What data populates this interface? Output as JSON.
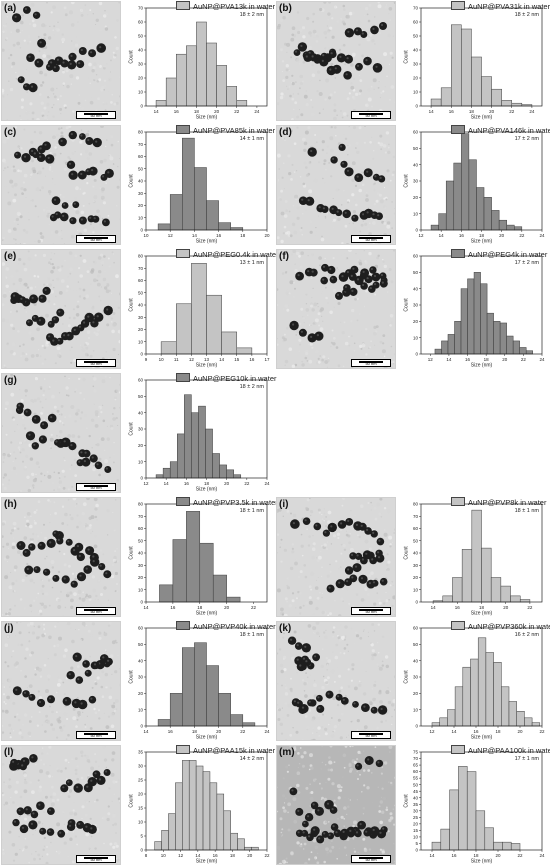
{
  "scalebar_label": "50 nm",
  "colors": {
    "dark_bars": "#8a8a8a",
    "light_bars": "#c4c4c4",
    "edge": "#3a3a3a"
  },
  "chart_data": [
    {
      "id": "a",
      "type": "bar",
      "label": "(a)",
      "legend": "AuNP@PVA13k in water",
      "size_text": "18 ± 2 nm",
      "xlabel": "Size (nm)",
      "ylabel": "Count",
      "xlim": [
        13,
        25
      ],
      "ylim": [
        0,
        70
      ],
      "xticks": [
        14,
        16,
        18,
        20,
        22,
        24
      ],
      "yticks": [
        0,
        10,
        20,
        30,
        40,
        50,
        60,
        70
      ],
      "bin_start": 14,
      "bin_width": 1,
      "values": [
        4,
        20,
        37,
        43,
        60,
        45,
        29,
        14,
        4
      ],
      "shade": "light"
    },
    {
      "id": "b",
      "type": "bar",
      "label": "(b)",
      "legend": "AuNP@PVA31k in water",
      "size_text": "18 ± 2 nm",
      "xlabel": "Size (nm)",
      "ylabel": "Count",
      "xlim": [
        13,
        25
      ],
      "ylim": [
        0,
        70
      ],
      "xticks": [
        14,
        16,
        18,
        20,
        22,
        24
      ],
      "yticks": [
        0,
        10,
        20,
        30,
        40,
        50,
        60,
        70
      ],
      "bin_start": 14,
      "bin_width": 1,
      "values": [
        5,
        13,
        58,
        55,
        35,
        21,
        12,
        4,
        2,
        1
      ],
      "shade": "light"
    },
    {
      "id": "c",
      "type": "bar",
      "label": "(c)",
      "legend": "AuNP@PVA85k in water",
      "size_text": "14 ± 1 nm",
      "xlabel": "Size (nm)",
      "ylabel": "Count",
      "xlim": [
        10,
        20
      ],
      "ylim": [
        0,
        80
      ],
      "xticks": [
        10,
        12,
        14,
        16,
        18,
        20
      ],
      "yticks": [
        0,
        10,
        20,
        30,
        40,
        50,
        60,
        70,
        80
      ],
      "bin_start": 11,
      "bin_width": 1,
      "values": [
        5,
        29,
        75,
        51,
        24,
        6,
        2
      ],
      "shade": "dark"
    },
    {
      "id": "d",
      "type": "bar",
      "label": "(d)",
      "legend": "AuNP@PVA146k in water",
      "size_text": "17 ± 2 nm",
      "xlabel": "Size (nm)",
      "ylabel": "Count",
      "xlim": [
        12,
        24
      ],
      "ylim": [
        0,
        60
      ],
      "xticks": [
        12,
        14,
        16,
        18,
        20,
        22,
        24
      ],
      "yticks": [
        0,
        10,
        20,
        30,
        40,
        50,
        60
      ],
      "bin_start": 13,
      "bin_width": 0.75,
      "values": [
        3,
        10,
        30,
        41,
        59,
        43,
        26,
        20,
        12,
        6,
        3,
        2
      ],
      "shade": "dark"
    },
    {
      "id": "e",
      "type": "bar",
      "label": "(e)",
      "legend": "AuNP@PEG0.4k in water",
      "size_text": "13 ± 1 nm",
      "xlabel": "Size (nm)",
      "ylabel": "Count",
      "xlim": [
        9,
        17
      ],
      "ylim": [
        0,
        80
      ],
      "xticks": [
        9,
        10,
        11,
        12,
        13,
        14,
        15,
        16,
        17
      ],
      "yticks": [
        0,
        10,
        20,
        30,
        40,
        50,
        60,
        70,
        80
      ],
      "bin_start": 10,
      "bin_width": 1,
      "values": [
        10,
        41,
        74,
        48,
        18,
        5
      ],
      "shade": "light"
    },
    {
      "id": "f",
      "type": "bar",
      "label": "(f)",
      "legend": "AuNP@PEG4k in water",
      "size_text": "17 ± 2 nm",
      "xlabel": "Size (nm)",
      "ylabel": "Count",
      "xlim": [
        11,
        24
      ],
      "ylim": [
        0,
        60
      ],
      "xticks": [
        12,
        14,
        16,
        18,
        20,
        22,
        24
      ],
      "yticks": [
        0,
        10,
        20,
        30,
        40,
        50,
        60
      ],
      "bin_start": 12.5,
      "bin_width": 0.7,
      "values": [
        3,
        8,
        12,
        20,
        40,
        46,
        50,
        43,
        25,
        20,
        19,
        11,
        8,
        4,
        2
      ],
      "shade": "dark"
    },
    {
      "id": "g",
      "type": "bar",
      "label": "(g)",
      "legend": "AuNP@PEG10k in water",
      "size_text": "18 ± 2 nm",
      "xlabel": "Size (nm)",
      "ylabel": "Count",
      "xlim": [
        12,
        24
      ],
      "ylim": [
        0,
        60
      ],
      "xticks": [
        12,
        14,
        16,
        18,
        20,
        22,
        24
      ],
      "yticks": [
        0,
        10,
        20,
        30,
        40,
        50,
        60
      ],
      "bin_start": 13,
      "bin_width": 0.7,
      "values": [
        2,
        6,
        10,
        27,
        51,
        40,
        44,
        30,
        15,
        8,
        5,
        2
      ],
      "shade": "dark"
    },
    {
      "id": "h",
      "type": "bar",
      "label": "(h)",
      "legend": "AuNP@PVP3.5k in water",
      "size_text": "18 ± 1 nm",
      "xlabel": "Size (nm)",
      "ylabel": "Count",
      "xlim": [
        14,
        23
      ],
      "ylim": [
        0,
        80
      ],
      "xticks": [
        14,
        16,
        18,
        20,
        22
      ],
      "yticks": [
        0,
        10,
        20,
        30,
        40,
        50,
        60,
        70,
        80
      ],
      "bin_start": 15,
      "bin_width": 1,
      "values": [
        14,
        51,
        74,
        48,
        22,
        4
      ],
      "shade": "dark"
    },
    {
      "id": "i",
      "type": "bar",
      "label": "(i)",
      "legend": "AuNP@PVP8k in water",
      "size_text": "18 ± 1 nm",
      "xlabel": "Size (nm)",
      "ylabel": "Count",
      "xlim": [
        13,
        23
      ],
      "ylim": [
        0,
        80
      ],
      "xticks": [
        14,
        16,
        18,
        20,
        22
      ],
      "yticks": [
        0,
        10,
        20,
        30,
        40,
        50,
        60,
        70,
        80
      ],
      "bin_start": 14,
      "bin_width": 0.8,
      "values": [
        1,
        5,
        20,
        43,
        75,
        44,
        20,
        13,
        5,
        2
      ],
      "shade": "light"
    },
    {
      "id": "j",
      "type": "bar",
      "label": "(j)",
      "legend": "AuNP@PVP40k in water",
      "size_text": "18 ± 1 nm",
      "xlabel": "Size (nm)",
      "ylabel": "Count",
      "xlim": [
        14,
        24
      ],
      "ylim": [
        0,
        60
      ],
      "xticks": [
        14,
        16,
        18,
        20,
        22,
        24
      ],
      "yticks": [
        0,
        10,
        20,
        30,
        40,
        50,
        60
      ],
      "bin_start": 15,
      "bin_width": 1,
      "values": [
        4,
        20,
        48,
        51,
        37,
        20,
        7,
        2
      ],
      "shade": "dark"
    },
    {
      "id": "k",
      "type": "bar",
      "label": "(k)",
      "legend": "AuNP@PVP360k in water",
      "size_text": "16 ± 2 nm",
      "xlabel": "Size (nm)",
      "ylabel": "Count",
      "xlim": [
        11,
        22
      ],
      "ylim": [
        0,
        60
      ],
      "xticks": [
        12,
        14,
        16,
        18,
        20,
        22
      ],
      "yticks": [
        0,
        10,
        20,
        30,
        40,
        50,
        60
      ],
      "bin_start": 12,
      "bin_width": 0.7,
      "values": [
        2,
        5,
        10,
        24,
        36,
        41,
        54,
        45,
        39,
        24,
        15,
        9,
        5,
        2
      ],
      "shade": "light"
    },
    {
      "id": "l",
      "type": "bar",
      "label": "(l)",
      "legend": "AuNP@PAA15k in water",
      "size_text": "14 ± 2 nm",
      "xlabel": "Size (nm)",
      "ylabel": "Count",
      "xlim": [
        8,
        22
      ],
      "ylim": [
        0,
        35
      ],
      "xticks": [
        8,
        10,
        12,
        14,
        16,
        18,
        20,
        22
      ],
      "yticks": [
        0,
        5,
        10,
        15,
        20,
        25,
        30,
        35
      ],
      "bin_start": 9,
      "bin_width": 0.8,
      "values": [
        3,
        7,
        13,
        24,
        32,
        32,
        30,
        28,
        24,
        20,
        14,
        6,
        4,
        1,
        1
      ],
      "shade": "light"
    },
    {
      "id": "m",
      "type": "bar",
      "label": "(m)",
      "legend": "AuNP@PAA100k in water",
      "size_text": "17 ± 1 nm",
      "xlabel": "Size (nm)",
      "ylabel": "Count",
      "xlim": [
        13,
        24
      ],
      "ylim": [
        0,
        75
      ],
      "xticks": [
        14,
        16,
        18,
        20,
        22,
        24
      ],
      "yticks": [
        0,
        5,
        10,
        15,
        20,
        25,
        30,
        35,
        40,
        45,
        50,
        55,
        60,
        65,
        70,
        75
      ],
      "bin_start": 14,
      "bin_width": 0.8,
      "values": [
        6,
        16,
        46,
        64,
        60,
        30,
        17,
        6,
        6,
        5
      ],
      "shade": "light"
    }
  ]
}
